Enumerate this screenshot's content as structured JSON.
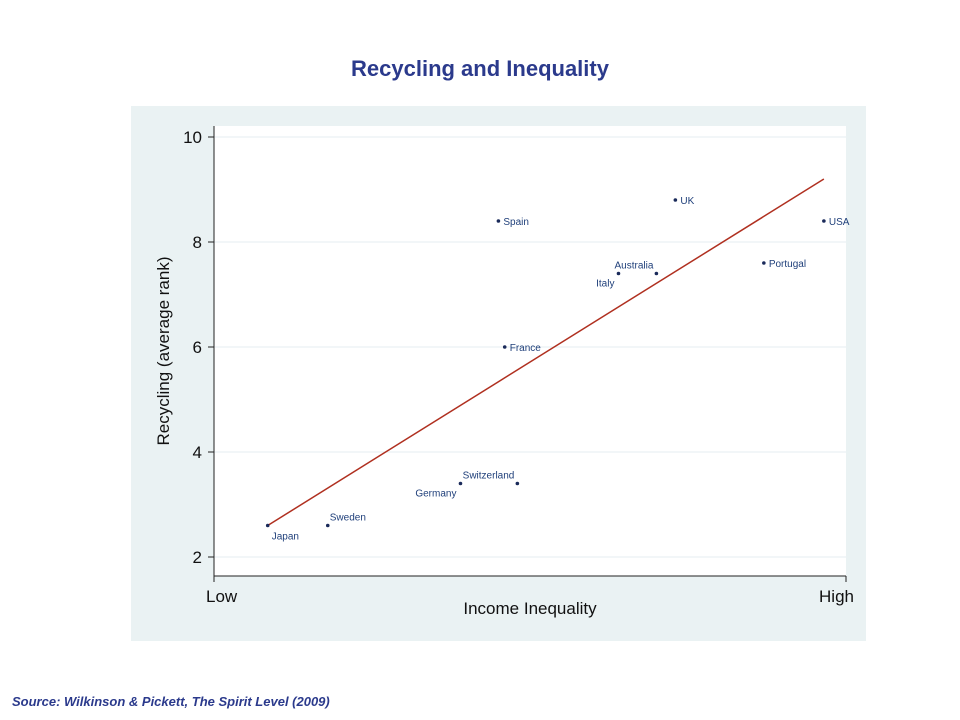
{
  "title": "Recycling and Inequality",
  "source": "Source: Wilkinson & Pickett, The Spirit Level (2009)",
  "colors": {
    "title": "#2b3a8c",
    "chart_bg": "#eaf2f3",
    "plot_bg": "#ffffff",
    "point": "#1a2a5a",
    "point_label": "#1f3f7a",
    "fit_line": "#b03020",
    "grid": "#e6eef0",
    "axis_text": "#111111"
  },
  "chart_data": {
    "type": "scatter",
    "title": "Recycling and Inequality",
    "xlabel": "Income Inequality",
    "ylabel": "Recycling (average rank)",
    "x_tick_labels": [
      "Low",
      "High"
    ],
    "xlim": [
      0,
      10
    ],
    "ylim": [
      2,
      10
    ],
    "yticks": [
      2,
      4,
      6,
      8,
      10
    ],
    "grid": true,
    "points": [
      {
        "label": "Japan",
        "x": 0.85,
        "y": 2.6,
        "label_pos": "below-right"
      },
      {
        "label": "Sweden",
        "x": 1.8,
        "y": 2.6,
        "label_pos": "above-right"
      },
      {
        "label": "Germany",
        "x": 3.9,
        "y": 3.4,
        "label_pos": "below-left"
      },
      {
        "label": "Switzerland",
        "x": 4.8,
        "y": 3.4,
        "label_pos": "above-left"
      },
      {
        "label": "France",
        "x": 4.6,
        "y": 6.0,
        "label_pos": "right"
      },
      {
        "label": "Spain",
        "x": 4.5,
        "y": 8.4,
        "label_pos": "right"
      },
      {
        "label": "Italy",
        "x": 6.4,
        "y": 7.4,
        "label_pos": "below-left"
      },
      {
        "label": "Australia",
        "x": 7.0,
        "y": 7.4,
        "label_pos": "above-left"
      },
      {
        "label": "UK",
        "x": 7.3,
        "y": 8.8,
        "label_pos": "right"
      },
      {
        "label": "Portugal",
        "x": 8.7,
        "y": 7.6,
        "label_pos": "right"
      },
      {
        "label": "USA",
        "x": 9.65,
        "y": 8.4,
        "label_pos": "right"
      }
    ],
    "fit_line": {
      "x": [
        0.85,
        9.65
      ],
      "y": [
        2.6,
        9.2
      ]
    }
  }
}
